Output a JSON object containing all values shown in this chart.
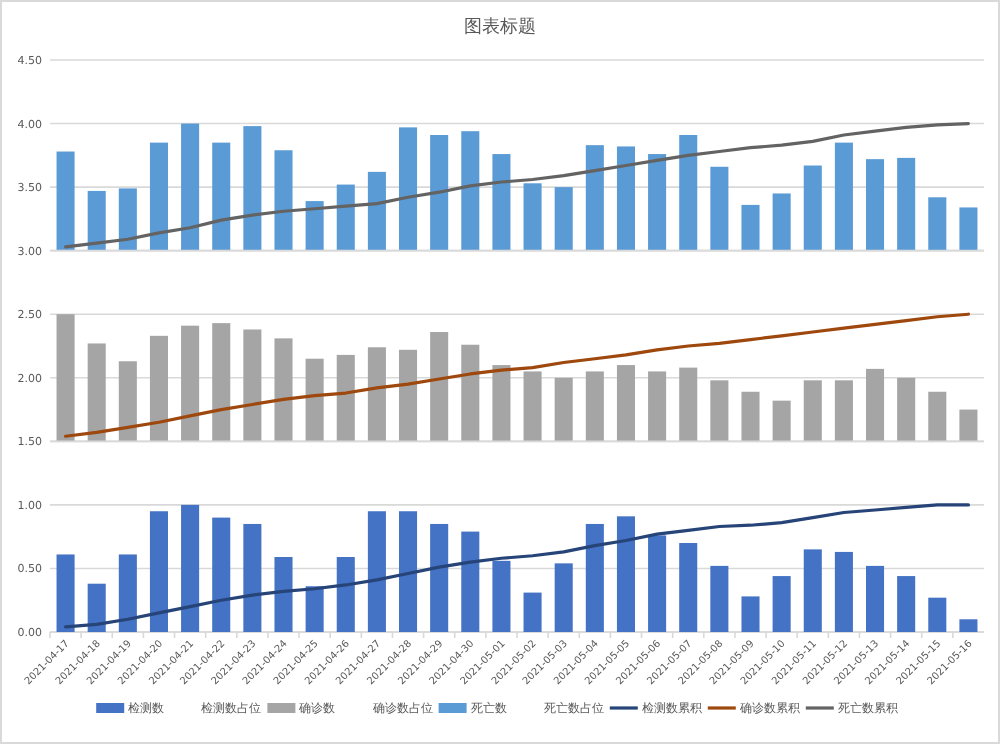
{
  "chart_data": [
    {
      "type": "bar",
      "title": "图表标题",
      "grid": "y",
      "legend": "bottom",
      "tick_labels": "y",
      "categories": [
        "2021-04-17",
        "2021-04-18",
        "2021-04-19",
        "2021-04-20",
        "2021-04-21",
        "2021-04-22",
        "2021-04-23",
        "2021-04-24",
        "2021-04-25",
        "2021-04-26",
        "2021-04-27",
        "2021-04-28",
        "2021-04-29",
        "2021-04-30",
        "2021-05-01",
        "2021-05-02",
        "2021-05-03",
        "2021-05-04",
        "2021-05-05",
        "2021-05-06",
        "2021-05-07",
        "2021-05-08",
        "2021-05-09",
        "2021-05-10",
        "2021-05-11",
        "2021-05-12",
        "2021-05-13",
        "2021-05-14",
        "2021-05-15",
        "2021-05-16"
      ],
      "ylim": [
        3,
        4.5
      ],
      "yticks": [
        {
          "value": 3,
          "label": "3.00"
        },
        {
          "value": 3.5,
          "label": "3.50"
        },
        {
          "value": 4,
          "label": "4.00"
        },
        {
          "value": 4.5,
          "label": "4.50"
        }
      ],
      "series": [
        {
          "name": "死亡数",
          "color": "#5b9bd5",
          "values": [
            3.78,
            3.47,
            3.49,
            3.85,
            4.0,
            3.85,
            3.98,
            3.79,
            3.39,
            3.52,
            3.62,
            3.97,
            3.91,
            3.94,
            3.76,
            3.53,
            3.5,
            3.83,
            3.82,
            3.76,
            3.91,
            3.66,
            3.36,
            3.45,
            3.67,
            3.85,
            3.72,
            3.73,
            3.42,
            3.34
          ]
        },
        {
          "name": "死亡数占位",
          "values": [
            null,
            null,
            null,
            null,
            null,
            null,
            null,
            null,
            null,
            null,
            null,
            null,
            null,
            null,
            null,
            null,
            null,
            null,
            null,
            null,
            null,
            null,
            null,
            null,
            null,
            null,
            null,
            null,
            null,
            null
          ]
        },
        {
          "name": "死亡数累积",
          "type": "line",
          "color": "#636363",
          "values": [
            3.03,
            3.06,
            3.09,
            3.14,
            3.18,
            3.24,
            3.28,
            3.31,
            3.33,
            3.35,
            3.37,
            3.42,
            3.46,
            3.51,
            3.54,
            3.56,
            3.59,
            3.63,
            3.67,
            3.71,
            3.75,
            3.78,
            3.81,
            3.83,
            3.86,
            3.91,
            3.94,
            3.97,
            3.99,
            4.0
          ]
        }
      ]
    },
    {
      "type": "bar",
      "grid": "y",
      "legend": "bottom",
      "tick_labels": "y",
      "categories": [
        "2021-04-17",
        "2021-04-18",
        "2021-04-19",
        "2021-04-20",
        "2021-04-21",
        "2021-04-22",
        "2021-04-23",
        "2021-04-24",
        "2021-04-25",
        "2021-04-26",
        "2021-04-27",
        "2021-04-28",
        "2021-04-29",
        "2021-04-30",
        "2021-05-01",
        "2021-05-02",
        "2021-05-03",
        "2021-05-04",
        "2021-05-05",
        "2021-05-06",
        "2021-05-07",
        "2021-05-08",
        "2021-05-09",
        "2021-05-10",
        "2021-05-11",
        "2021-05-12",
        "2021-05-13",
        "2021-05-14",
        "2021-05-15",
        "2021-05-16"
      ],
      "ylim": [
        1.5,
        3
      ],
      "yticks": [
        {
          "value": 1.5,
          "label": "1.50"
        },
        {
          "value": 2,
          "label": "2.00"
        },
        {
          "value": 2.5,
          "label": "2.50"
        },
        {
          "value": 3,
          "label": null
        }
      ],
      "series": [
        {
          "name": "确诊数",
          "color": "#a5a5a5",
          "values": [
            2.5,
            2.27,
            2.13,
            2.33,
            2.41,
            2.43,
            2.38,
            2.31,
            2.15,
            2.18,
            2.24,
            2.22,
            2.36,
            2.26,
            2.1,
            2.05,
            2.0,
            2.05,
            2.1,
            2.05,
            2.08,
            1.98,
            1.89,
            1.82,
            1.98,
            1.98,
            2.07,
            2.0,
            1.89,
            1.75
          ]
        },
        {
          "name": "确诊数占位",
          "values": [
            null,
            null,
            null,
            null,
            null,
            null,
            null,
            null,
            null,
            null,
            null,
            null,
            null,
            null,
            null,
            null,
            null,
            null,
            null,
            null,
            null,
            null,
            null,
            null,
            null,
            null,
            null,
            null,
            null,
            null
          ]
        },
        {
          "name": "确诊数累积",
          "type": "line",
          "color": "#9e480e",
          "values": [
            1.54,
            1.57,
            1.61,
            1.65,
            1.7,
            1.75,
            1.79,
            1.83,
            1.86,
            1.88,
            1.92,
            1.95,
            1.99,
            2.03,
            2.06,
            2.08,
            2.12,
            2.15,
            2.18,
            2.22,
            2.25,
            2.27,
            2.3,
            2.33,
            2.36,
            2.39,
            2.42,
            2.45,
            2.48,
            2.5
          ]
        }
      ]
    },
    {
      "type": "bar",
      "grid": "y",
      "legend": "bottom",
      "categories": [
        "2021-04-17",
        "2021-04-18",
        "2021-04-19",
        "2021-04-20",
        "2021-04-21",
        "2021-04-22",
        "2021-04-23",
        "2021-04-24",
        "2021-04-25",
        "2021-04-26",
        "2021-04-27",
        "2021-04-28",
        "2021-04-29",
        "2021-04-30",
        "2021-05-01",
        "2021-05-02",
        "2021-05-03",
        "2021-05-04",
        "2021-05-05",
        "2021-05-06",
        "2021-05-07",
        "2021-05-08",
        "2021-05-09",
        "2021-05-10",
        "2021-05-11",
        "2021-05-12",
        "2021-05-13",
        "2021-05-14",
        "2021-05-15",
        "2021-05-16"
      ],
      "ylim": [
        0,
        1.5
      ],
      "yticks": [
        {
          "value": 0,
          "label": "0.00"
        },
        {
          "value": 0.5,
          "label": "0.50"
        },
        {
          "value": 1,
          "label": "1.00"
        },
        {
          "value": 1.5,
          "label": null
        }
      ],
      "series": [
        {
          "name": "检测数",
          "color": "#4472c4",
          "values": [
            0.61,
            0.38,
            0.61,
            0.95,
            1.0,
            0.9,
            0.85,
            0.59,
            0.36,
            0.59,
            0.95,
            0.95,
            0.85,
            0.79,
            0.56,
            0.31,
            0.54,
            0.85,
            0.91,
            0.76,
            0.7,
            0.52,
            0.28,
            0.44,
            0.65,
            0.63,
            0.52,
            0.44,
            0.27,
            0.1
          ]
        },
        {
          "name": "检测数占位",
          "values": [
            null,
            null,
            null,
            null,
            null,
            null,
            null,
            null,
            null,
            null,
            null,
            null,
            null,
            null,
            null,
            null,
            null,
            null,
            null,
            null,
            null,
            null,
            null,
            null,
            null,
            null,
            null,
            null,
            null,
            null
          ]
        },
        {
          "name": "检测数累积",
          "type": "line",
          "color": "#264478",
          "values": [
            0.04,
            0.06,
            0.1,
            0.15,
            0.2,
            0.25,
            0.29,
            0.32,
            0.34,
            0.37,
            0.41,
            0.46,
            0.51,
            0.55,
            0.58,
            0.6,
            0.63,
            0.68,
            0.72,
            0.77,
            0.8,
            0.83,
            0.84,
            0.86,
            0.9,
            0.94,
            0.96,
            0.98,
            1.0,
            1.0
          ]
        }
      ]
    }
  ]
}
